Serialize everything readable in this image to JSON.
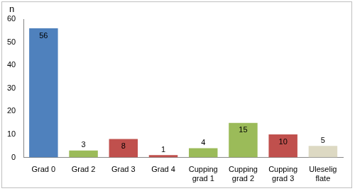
{
  "chart_data": {
    "type": "bar",
    "y_label": "n",
    "categories": [
      "Grad 0",
      "Grad 2",
      "Grad 3",
      "Grad 4",
      "Cupping grad 1",
      "Cupping grad 2",
      "Cupping grad 3",
      "Uleselig flate"
    ],
    "values": [
      56,
      3,
      8,
      1,
      4,
      15,
      10,
      5
    ],
    "colors": [
      "#4f81bd",
      "#9bbb59",
      "#c0504d",
      "#c0504d",
      "#9bbb59",
      "#9bbb59",
      "#c0504d",
      "#ddd9c3"
    ],
    "ylim": [
      0,
      60
    ],
    "yticks": [
      0,
      10,
      20,
      30,
      40,
      50,
      60
    ],
    "grid": false,
    "data_labels": true
  }
}
